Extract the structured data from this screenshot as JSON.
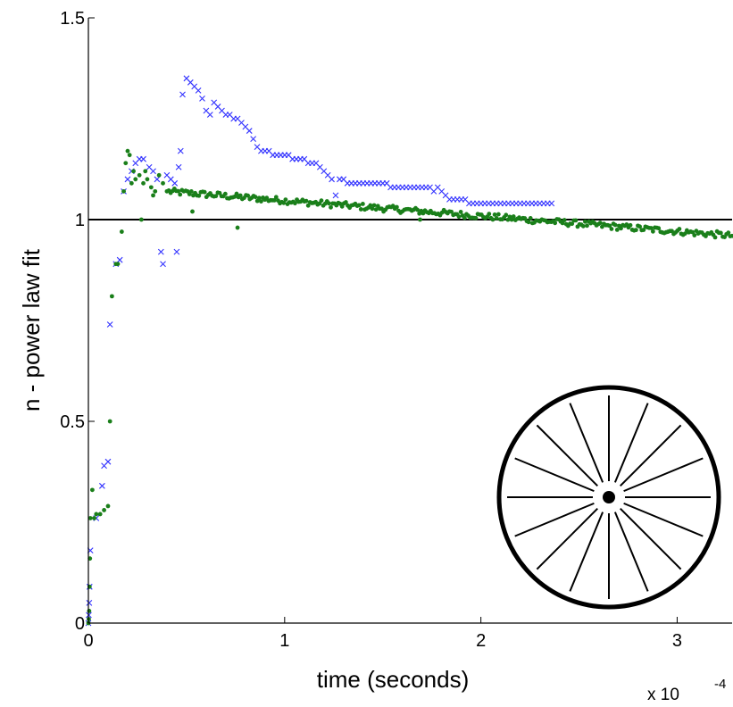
{
  "chart_data": {
    "type": "scatter",
    "title": "",
    "xlabel": "time (seconds)",
    "ylabel": "n - power law fit",
    "x_multiplier_label": "x 10",
    "x_multiplier_exponent": "-4",
    "xlim": [
      0,
      3.28
    ],
    "ylim": [
      0,
      1.5
    ],
    "xticks": [
      0,
      1,
      2,
      3
    ],
    "xtick_labels": [
      "0",
      "1",
      "2",
      "3"
    ],
    "yticks": [
      0,
      0.5,
      1,
      1.5
    ],
    "ytick_labels": [
      "0",
      "0.5",
      "1",
      "1.5"
    ],
    "grid": false,
    "reference_line": {
      "y": 1,
      "color": "#000000"
    },
    "series": [
      {
        "marker": "x",
        "color": "#3333ff",
        "points": [
          [
            0.0,
            0.0
          ],
          [
            0.002,
            0.02
          ],
          [
            0.004,
            0.05
          ],
          [
            0.006,
            0.09
          ],
          [
            0.01,
            0.18
          ],
          [
            0.04,
            0.26
          ],
          [
            0.07,
            0.34
          ],
          [
            0.08,
            0.39
          ],
          [
            0.1,
            0.4
          ],
          [
            0.11,
            0.74
          ],
          [
            0.14,
            0.89
          ],
          [
            0.16,
            0.9
          ],
          [
            0.18,
            1.07
          ],
          [
            0.2,
            1.1
          ],
          [
            0.22,
            1.12
          ],
          [
            0.24,
            1.14
          ],
          [
            0.26,
            1.15
          ],
          [
            0.28,
            1.15
          ],
          [
            0.31,
            1.13
          ],
          [
            0.33,
            1.12
          ],
          [
            0.35,
            1.1
          ],
          [
            0.37,
            0.92
          ],
          [
            0.38,
            0.89
          ],
          [
            0.4,
            1.11
          ],
          [
            0.42,
            1.1
          ],
          [
            0.44,
            1.09
          ],
          [
            0.45,
            0.92
          ],
          [
            0.46,
            1.13
          ],
          [
            0.47,
            1.17
          ],
          [
            0.48,
            1.31
          ],
          [
            0.5,
            1.35
          ],
          [
            0.52,
            1.34
          ],
          [
            0.54,
            1.33
          ],
          [
            0.56,
            1.32
          ],
          [
            0.58,
            1.3
          ],
          [
            0.6,
            1.27
          ],
          [
            0.62,
            1.26
          ],
          [
            0.64,
            1.29
          ],
          [
            0.66,
            1.28
          ],
          [
            0.68,
            1.27
          ],
          [
            0.7,
            1.26
          ],
          [
            0.72,
            1.26
          ],
          [
            0.74,
            1.25
          ],
          [
            0.76,
            1.25
          ],
          [
            0.78,
            1.24
          ],
          [
            0.8,
            1.23
          ],
          [
            0.82,
            1.22
          ],
          [
            0.84,
            1.2
          ],
          [
            0.86,
            1.18
          ],
          [
            0.88,
            1.17
          ],
          [
            0.9,
            1.17
          ],
          [
            0.92,
            1.17
          ],
          [
            0.94,
            1.16
          ],
          [
            0.96,
            1.16
          ],
          [
            0.98,
            1.16
          ],
          [
            1.0,
            1.16
          ],
          [
            1.02,
            1.16
          ],
          [
            1.04,
            1.15
          ],
          [
            1.06,
            1.15
          ],
          [
            1.08,
            1.15
          ],
          [
            1.1,
            1.15
          ],
          [
            1.12,
            1.14
          ],
          [
            1.14,
            1.14
          ],
          [
            1.16,
            1.14
          ],
          [
            1.18,
            1.13
          ],
          [
            1.2,
            1.12
          ],
          [
            1.22,
            1.11
          ],
          [
            1.24,
            1.1
          ],
          [
            1.26,
            1.06
          ],
          [
            1.28,
            1.1
          ],
          [
            1.3,
            1.1
          ],
          [
            1.32,
            1.09
          ],
          [
            1.34,
            1.09
          ],
          [
            1.36,
            1.09
          ],
          [
            1.38,
            1.09
          ],
          [
            1.4,
            1.09
          ],
          [
            1.42,
            1.09
          ],
          [
            1.44,
            1.09
          ],
          [
            1.46,
            1.09
          ],
          [
            1.48,
            1.09
          ],
          [
            1.5,
            1.09
          ],
          [
            1.52,
            1.09
          ],
          [
            1.54,
            1.08
          ],
          [
            1.56,
            1.08
          ],
          [
            1.58,
            1.08
          ],
          [
            1.6,
            1.08
          ],
          [
            1.62,
            1.08
          ],
          [
            1.64,
            1.08
          ],
          [
            1.66,
            1.08
          ],
          [
            1.68,
            1.08
          ],
          [
            1.7,
            1.08
          ],
          [
            1.72,
            1.08
          ],
          [
            1.74,
            1.08
          ],
          [
            1.76,
            1.07
          ],
          [
            1.78,
            1.08
          ],
          [
            1.8,
            1.07
          ],
          [
            1.82,
            1.06
          ],
          [
            1.84,
            1.05
          ],
          [
            1.86,
            1.05
          ],
          [
            1.88,
            1.05
          ],
          [
            1.9,
            1.05
          ],
          [
            1.92,
            1.05
          ],
          [
            1.94,
            1.04
          ],
          [
            1.96,
            1.04
          ],
          [
            1.98,
            1.04
          ],
          [
            2.0,
            1.04
          ],
          [
            2.02,
            1.04
          ],
          [
            2.04,
            1.04
          ],
          [
            2.06,
            1.04
          ],
          [
            2.08,
            1.04
          ],
          [
            2.1,
            1.04
          ],
          [
            2.12,
            1.04
          ],
          [
            2.14,
            1.04
          ],
          [
            2.16,
            1.04
          ],
          [
            2.18,
            1.04
          ],
          [
            2.2,
            1.04
          ],
          [
            2.22,
            1.04
          ],
          [
            2.24,
            1.04
          ],
          [
            2.26,
            1.04
          ],
          [
            2.28,
            1.04
          ],
          [
            2.3,
            1.04
          ],
          [
            2.32,
            1.04
          ],
          [
            2.34,
            1.04
          ],
          [
            2.36,
            1.04
          ]
        ]
      },
      {
        "marker": "dot",
        "color": "#1a7f1a",
        "points": [
          [
            0.0,
            0.0
          ],
          [
            0.002,
            0.01
          ],
          [
            0.004,
            0.03
          ],
          [
            0.006,
            0.09
          ],
          [
            0.008,
            0.16
          ],
          [
            0.01,
            0.26
          ],
          [
            0.02,
            0.33
          ],
          [
            0.03,
            0.26
          ],
          [
            0.04,
            0.27
          ],
          [
            0.06,
            0.27
          ],
          [
            0.08,
            0.28
          ],
          [
            0.1,
            0.29
          ],
          [
            0.11,
            0.5
          ],
          [
            0.12,
            0.81
          ],
          [
            0.14,
            0.89
          ],
          [
            0.15,
            0.89
          ],
          [
            0.17,
            0.97
          ],
          [
            0.18,
            1.07
          ],
          [
            0.19,
            1.14
          ],
          [
            0.2,
            1.17
          ],
          [
            0.21,
            1.16
          ],
          [
            0.22,
            1.09
          ],
          [
            0.23,
            1.12
          ],
          [
            0.24,
            1.1
          ],
          [
            0.26,
            1.11
          ],
          [
            0.27,
            1.0
          ],
          [
            0.28,
            1.09
          ],
          [
            0.29,
            1.12
          ],
          [
            0.3,
            1.1
          ],
          [
            0.32,
            1.08
          ],
          [
            0.33,
            1.06
          ],
          [
            0.34,
            1.07
          ],
          [
            0.36,
            1.11
          ],
          [
            0.38,
            1.09
          ],
          [
            0.4,
            1.07
          ]
        ],
        "trend": {
          "x_start": 0.4,
          "y_start": 1.07,
          "x_end": 3.28,
          "y_end": 0.96,
          "n": 300,
          "noise": 0.008,
          "outliers": [
            [
              0.76,
              0.98
            ],
            [
              0.53,
              1.02
            ],
            [
              1.69,
              1.0
            ]
          ]
        }
      }
    ],
    "inset": {
      "description_icon": "wheel-spokes-icon",
      "spokes": 16
    }
  }
}
